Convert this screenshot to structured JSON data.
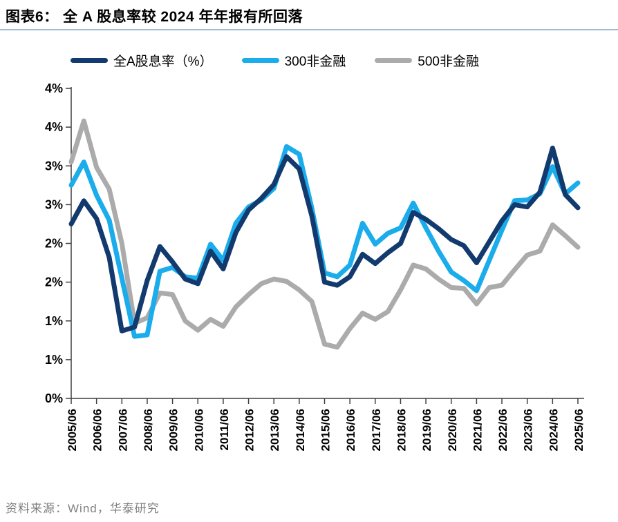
{
  "header": {
    "title": "图表6：  全 A 股息率较 2024 年年报有所回落"
  },
  "footer": {
    "source": "资料来源：Wind，华泰研究"
  },
  "chart_data": {
    "type": "line",
    "title": "全 A 股息率较 2024 年年报有所回落",
    "figure_number": "图表6",
    "categories": [
      "2005/06",
      "2005/12",
      "2006/06",
      "2006/12",
      "2007/06",
      "2007/12",
      "2008/06",
      "2008/12",
      "2009/06",
      "2009/12",
      "2010/06",
      "2010/12",
      "2011/06",
      "2011/12",
      "2012/06",
      "2012/12",
      "2013/06",
      "2013/12",
      "2014/06",
      "2014/12",
      "2015/06",
      "2015/12",
      "2016/06",
      "2016/12",
      "2017/06",
      "2017/12",
      "2018/06",
      "2018/12",
      "2019/06",
      "2019/12",
      "2020/06",
      "2020/12",
      "2021/06",
      "2021/12",
      "2022/06",
      "2022/12",
      "2023/06",
      "2023/12",
      "2024/06",
      "2024/12",
      "2025/06"
    ],
    "x_tick_labels": [
      "2005/06",
      "2006/06",
      "2007/06",
      "2008/06",
      "2009/06",
      "2010/06",
      "2011/06",
      "2012/06",
      "2013/06",
      "2014/06",
      "2015/06",
      "2016/06",
      "2017/06",
      "2018/06",
      "2019/06",
      "2020/06",
      "2021/06",
      "2022/06",
      "2023/06",
      "2024/06",
      "2025/06"
    ],
    "series": [
      {
        "name": "全A股息率（%）",
        "color": "#123a6e",
        "values": [
          2.25,
          2.55,
          2.32,
          1.82,
          0.87,
          0.92,
          1.52,
          1.96,
          1.76,
          1.54,
          1.48,
          1.9,
          1.67,
          2.14,
          2.43,
          2.58,
          2.76,
          3.12,
          2.96,
          2.35,
          1.5,
          1.46,
          1.57,
          1.86,
          1.74,
          1.88,
          2.0,
          2.4,
          2.31,
          2.19,
          2.05,
          1.97,
          1.75,
          2.02,
          2.29,
          2.5,
          2.47,
          2.66,
          3.23,
          2.63,
          2.46
        ]
      },
      {
        "name": "300非金融",
        "color": "#1bacec",
        "values": [
          2.75,
          3.05,
          2.62,
          2.3,
          1.55,
          0.8,
          0.82,
          1.64,
          1.69,
          1.57,
          1.55,
          1.99,
          1.78,
          2.26,
          2.47,
          2.56,
          2.71,
          3.25,
          3.15,
          2.45,
          1.62,
          1.57,
          1.72,
          2.26,
          1.99,
          2.13,
          2.2,
          2.52,
          2.2,
          1.9,
          1.63,
          1.52,
          1.39,
          1.78,
          2.17,
          2.55,
          2.56,
          2.64,
          2.99,
          2.64,
          2.78
        ]
      },
      {
        "name": "500非金融",
        "color": "#ababab",
        "values": [
          3.05,
          3.58,
          2.98,
          2.7,
          2.0,
          0.97,
          1.04,
          1.36,
          1.34,
          1.0,
          0.88,
          1.02,
          0.93,
          1.18,
          1.34,
          1.48,
          1.54,
          1.51,
          1.4,
          1.25,
          0.7,
          0.66,
          0.9,
          1.1,
          1.02,
          1.12,
          1.4,
          1.72,
          1.67,
          1.54,
          1.43,
          1.42,
          1.22,
          1.43,
          1.46,
          1.66,
          1.85,
          1.9,
          2.24,
          2.1,
          1.95
        ]
      }
    ],
    "ylim": [
      0,
      4
    ],
    "ytick_step": 0.5,
    "ytick_labels_bottom_to_top": [
      "0%",
      "1%",
      "1%",
      "2%",
      "2%",
      "3%",
      "3%",
      "4%",
      "4%"
    ],
    "grid": false,
    "legend_position": "top",
    "axis_color": "#3f3f3f",
    "line_width": 7
  }
}
